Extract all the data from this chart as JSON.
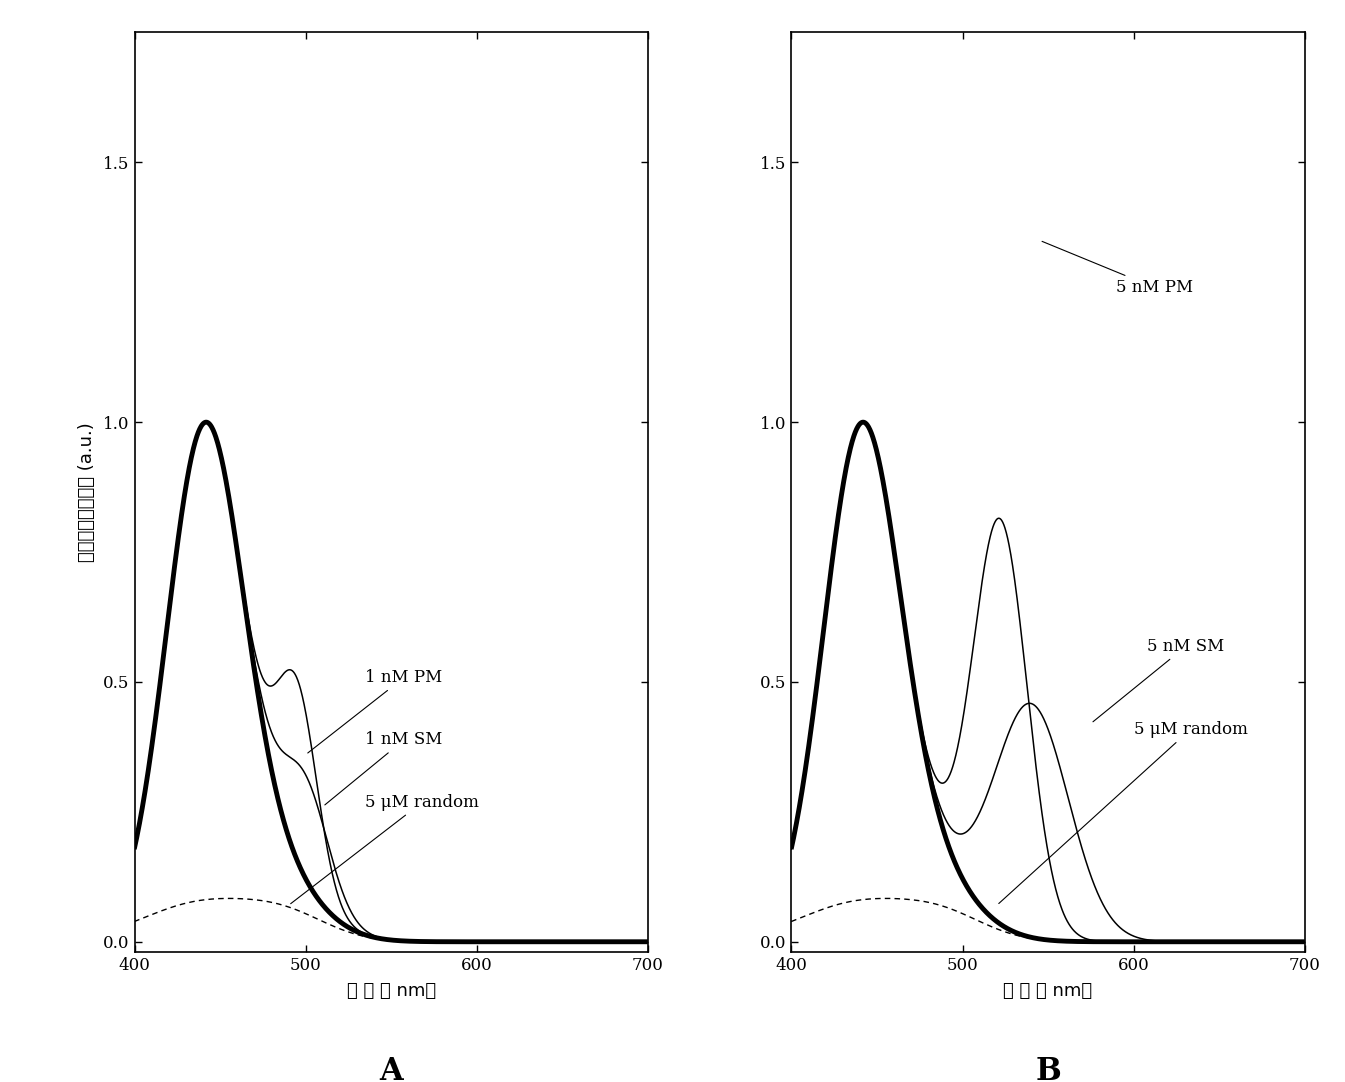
{
  "xlim": [
    400,
    700
  ],
  "ylim": [
    -0.02,
    1.75
  ],
  "yticks": [
    0.0,
    0.5,
    1.0,
    1.5
  ],
  "xticks": [
    400,
    500,
    600,
    700
  ],
  "xlabel_A": "波长（nm）",
  "xlabel_B": "波长（nm）",
  "ylabel": "归一化的荧光强度（a.u.）",
  "label_A": "A",
  "label_B": "B",
  "background_color": "#ffffff",
  "annotation_fontsize": 12,
  "axis_label_fontsize": 13,
  "tick_fontsize": 12,
  "panel_label_fontsize": 22
}
